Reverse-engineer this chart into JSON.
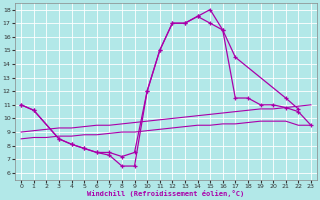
{
  "xlabel": "Windchill (Refroidissement éolien,°C)",
  "bg_color": "#b2e8e8",
  "grid_color": "#ffffff",
  "line_color": "#aa00aa",
  "ylim": [
    5.5,
    18.5
  ],
  "xlim": [
    -0.5,
    23.5
  ],
  "yticks": [
    6,
    7,
    8,
    9,
    10,
    11,
    12,
    13,
    14,
    15,
    16,
    17,
    18
  ],
  "xticks": [
    0,
    1,
    2,
    3,
    4,
    5,
    6,
    7,
    8,
    9,
    10,
    11,
    12,
    13,
    14,
    15,
    16,
    17,
    18,
    19,
    20,
    21,
    22,
    23
  ],
  "curve1_x": [
    0,
    1,
    3,
    4,
    5,
    6,
    7,
    8,
    9,
    10,
    11,
    12,
    13,
    14,
    15,
    16,
    17,
    21,
    22
  ],
  "curve1_y": [
    11.0,
    10.6,
    8.5,
    8.1,
    7.8,
    7.5,
    7.3,
    6.5,
    6.5,
    12.0,
    15.0,
    17.0,
    17.0,
    17.5,
    18.0,
    16.5,
    14.5,
    11.5,
    10.7
  ],
  "curve2_x": [
    0,
    1,
    3,
    4,
    5,
    6,
    7,
    8,
    9,
    10,
    11,
    12,
    13,
    14,
    15,
    16,
    17,
    18,
    19,
    20,
    21,
    22,
    23
  ],
  "curve2_y": [
    11.0,
    10.6,
    8.5,
    8.1,
    7.8,
    7.5,
    7.5,
    7.2,
    7.5,
    12.0,
    15.0,
    17.0,
    17.0,
    17.5,
    17.0,
    16.5,
    11.5,
    11.5,
    11.0,
    11.0,
    10.8,
    10.5,
    9.5
  ],
  "line1_x": [
    0,
    1,
    2,
    3,
    4,
    5,
    6,
    7,
    8,
    9,
    10,
    11,
    12,
    13,
    14,
    15,
    16,
    17,
    18,
    19,
    20,
    21,
    22,
    23
  ],
  "line1_y": [
    9.0,
    9.1,
    9.2,
    9.3,
    9.3,
    9.4,
    9.5,
    9.5,
    9.6,
    9.7,
    9.8,
    9.9,
    10.0,
    10.1,
    10.2,
    10.3,
    10.4,
    10.5,
    10.6,
    10.7,
    10.7,
    10.8,
    10.9,
    11.0
  ],
  "line2_x": [
    0,
    1,
    2,
    3,
    4,
    5,
    6,
    7,
    8,
    9,
    10,
    11,
    12,
    13,
    14,
    15,
    16,
    17,
    18,
    19,
    20,
    21,
    22,
    23
  ],
  "line2_y": [
    8.5,
    8.6,
    8.6,
    8.7,
    8.7,
    8.8,
    8.8,
    8.9,
    9.0,
    9.0,
    9.1,
    9.2,
    9.3,
    9.4,
    9.5,
    9.5,
    9.6,
    9.6,
    9.7,
    9.8,
    9.8,
    9.8,
    9.5,
    9.5
  ]
}
